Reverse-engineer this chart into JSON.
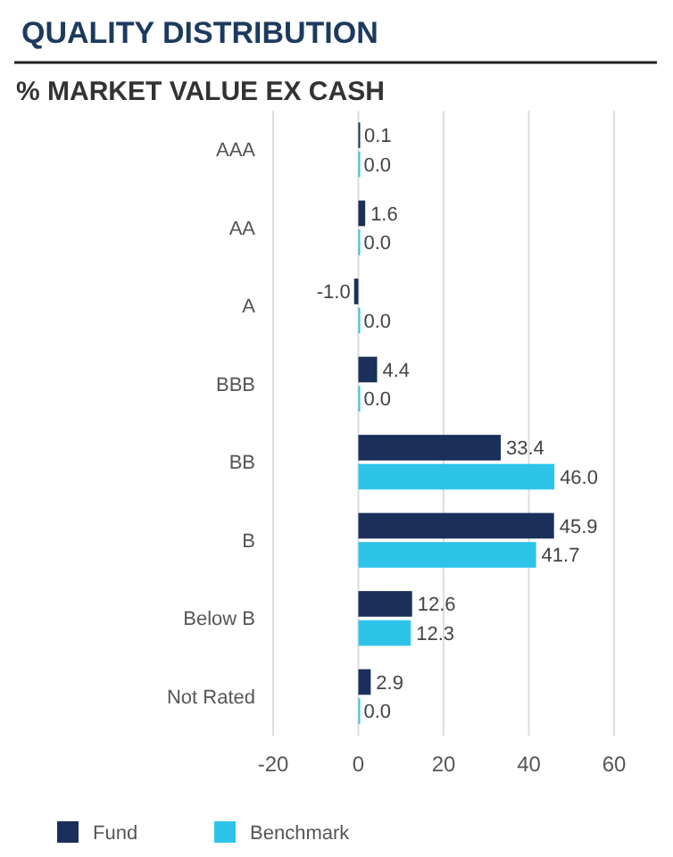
{
  "chart_data": {
    "type": "bar",
    "orientation": "horizontal",
    "title": "QUALITY DISTRIBUTION",
    "subtitle": "% MARKET VALUE EX CASH",
    "categories": [
      "AAA",
      "AA",
      "A",
      "BBB",
      "BB",
      "B",
      "Below B",
      "Not Rated"
    ],
    "series": [
      {
        "name": "Fund",
        "color": "#1b2f5b",
        "values": [
          0.1,
          1.6,
          -1.0,
          4.4,
          33.4,
          45.9,
          12.6,
          2.9
        ],
        "value_labels": [
          "0.1",
          "1.6",
          "-1.0",
          "4.4",
          "33.4",
          "45.9",
          "12.6",
          "2.9"
        ]
      },
      {
        "name": "Benchmark",
        "color": "#2ec4ea",
        "values": [
          0.0,
          0.0,
          0.0,
          0.0,
          46.0,
          41.7,
          12.3,
          0.0
        ],
        "value_labels": [
          "0.0",
          "0.0",
          "0.0",
          "0.0",
          "46.0",
          "41.7",
          "12.3",
          "0.0"
        ]
      }
    ],
    "xlim": [
      -20,
      60
    ],
    "xticks": [
      -20,
      0,
      20,
      40,
      60
    ],
    "grid": "x",
    "legend": "bottom left"
  }
}
